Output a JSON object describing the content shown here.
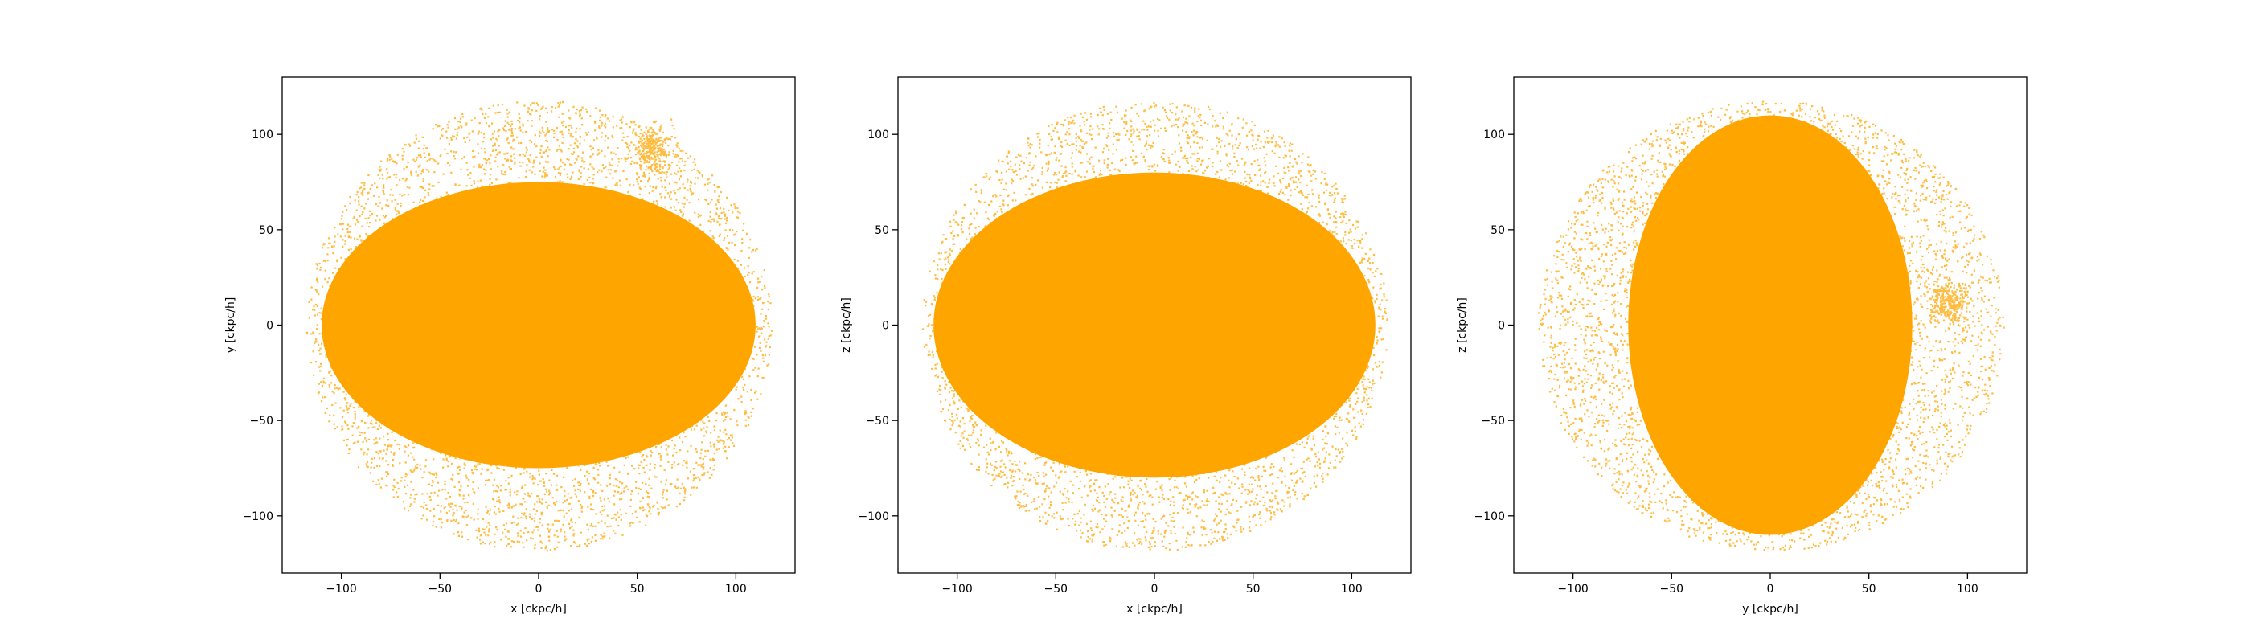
{
  "chart_data": [
    {
      "type": "scatter",
      "title": "",
      "xlabel": "x [ckpc/h]",
      "ylabel": "y [ckpc/h]",
      "xlim": [
        -130,
        130
      ],
      "ylim": [
        -130,
        130
      ],
      "xticks": [
        -100,
        -50,
        0,
        50,
        100
      ],
      "yticks": [
        -100,
        -50,
        0,
        50,
        100
      ],
      "grid": false,
      "point_color": "#ffa500",
      "distribution": {
        "center": [
          0,
          0
        ],
        "radius_x": 118,
        "radius_y": 118,
        "core_radius_x": 110,
        "core_radius_y": 75
      },
      "clumps": [
        {
          "x": 57,
          "y": 93,
          "r": 9
        }
      ]
    },
    {
      "type": "scatter",
      "title": "",
      "xlabel": "x [ckpc/h]",
      "ylabel": "z [ckpc/h]",
      "xlim": [
        -130,
        130
      ],
      "ylim": [
        -130,
        130
      ],
      "xticks": [
        -100,
        -50,
        0,
        50,
        100
      ],
      "yticks": [
        -100,
        -50,
        0,
        50,
        100
      ],
      "grid": false,
      "point_color": "#ffa500",
      "distribution": {
        "center": [
          0,
          0
        ],
        "radius_x": 118,
        "radius_y": 118,
        "core_radius_x": 112,
        "core_radius_y": 80
      },
      "clumps": [
        {
          "x": 60,
          "y": 40,
          "r": 7
        }
      ]
    },
    {
      "type": "scatter",
      "title": "",
      "xlabel": "y [ckpc/h]",
      "ylabel": "z [ckpc/h]",
      "xlim": [
        -130,
        130
      ],
      "ylim": [
        -130,
        130
      ],
      "xticks": [
        -100,
        -50,
        0,
        50,
        100
      ],
      "yticks": [
        -100,
        -50,
        0,
        50,
        100
      ],
      "grid": false,
      "point_color": "#ffa500",
      "distribution": {
        "center": [
          0,
          0
        ],
        "radius_x": 118,
        "radius_y": 118,
        "core_radius_x": 72,
        "core_radius_y": 110
      },
      "clumps": [
        {
          "x": 90,
          "y": 12,
          "r": 8
        }
      ]
    }
  ]
}
